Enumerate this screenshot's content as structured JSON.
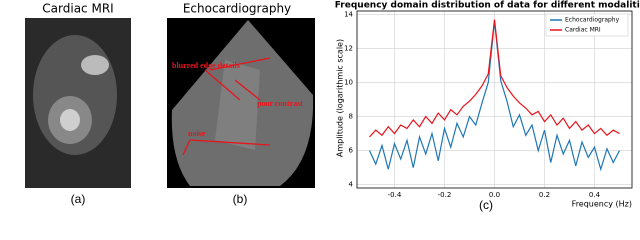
{
  "panels": [
    {
      "title": "Cardiac MRI",
      "caption": "(a)"
    },
    {
      "title": "Echocardiography",
      "caption": "(b)",
      "annotations": [
        "blurred edge details",
        "poor contrast",
        "noise"
      ]
    }
  ],
  "chart_data": {
    "type": "line",
    "title": "Frequency domain distribution of data for different modalities",
    "caption": "(c)",
    "x_label": "Frequency (Hz)",
    "y_label": "Amplitude (logarithmic scale)",
    "x": [
      -0.5,
      -0.475,
      -0.45,
      -0.425,
      -0.4,
      -0.375,
      -0.35,
      -0.325,
      -0.3,
      -0.275,
      -0.25,
      -0.225,
      -0.2,
      -0.175,
      -0.15,
      -0.125,
      -0.1,
      -0.075,
      -0.05,
      -0.025,
      0,
      0.025,
      0.05,
      0.075,
      0.1,
      0.125,
      0.15,
      0.175,
      0.2,
      0.225,
      0.25,
      0.275,
      0.3,
      0.325,
      0.35,
      0.375,
      0.4,
      0.425,
      0.45,
      0.475,
      0.5
    ],
    "series": [
      {
        "name": "Echocardiography",
        "color": "#1f77b4",
        "values": [
          6.0,
          5.2,
          6.3,
          4.9,
          6.4,
          5.5,
          6.6,
          5.0,
          6.8,
          5.8,
          7.0,
          5.4,
          7.3,
          6.2,
          7.6,
          6.8,
          8.0,
          7.5,
          8.8,
          10.0,
          13.6,
          10.1,
          8.9,
          7.4,
          8.1,
          6.9,
          7.5,
          6.0,
          7.2,
          5.3,
          6.9,
          5.8,
          6.6,
          5.1,
          6.5,
          5.6,
          6.2,
          4.9,
          6.1,
          5.3,
          6.0
        ]
      },
      {
        "name": "Cardiac MRI",
        "color": "#e8141c",
        "values": [
          6.8,
          7.2,
          6.9,
          7.4,
          7.0,
          7.5,
          7.3,
          7.8,
          7.4,
          8.0,
          7.6,
          8.2,
          7.8,
          8.4,
          8.1,
          8.6,
          8.9,
          9.3,
          9.8,
          10.5,
          13.7,
          10.4,
          9.7,
          9.2,
          8.8,
          8.5,
          8.1,
          8.3,
          7.7,
          8.1,
          7.5,
          7.9,
          7.3,
          7.7,
          7.2,
          7.5,
          7.0,
          7.3,
          6.9,
          7.2,
          7.0
        ]
      }
    ],
    "xlim": [
      -0.55,
      0.55
    ],
    "xticks": [
      -0.4,
      -0.2,
      {
        "value": 0,
        "label": "0.0"
      },
      0.2,
      0.4
    ],
    "ylim": [
      3.8,
      14.2
    ],
    "yticks": [
      4,
      6,
      8,
      10,
      12,
      14
    ],
    "grid": true,
    "legend": "upper right"
  }
}
